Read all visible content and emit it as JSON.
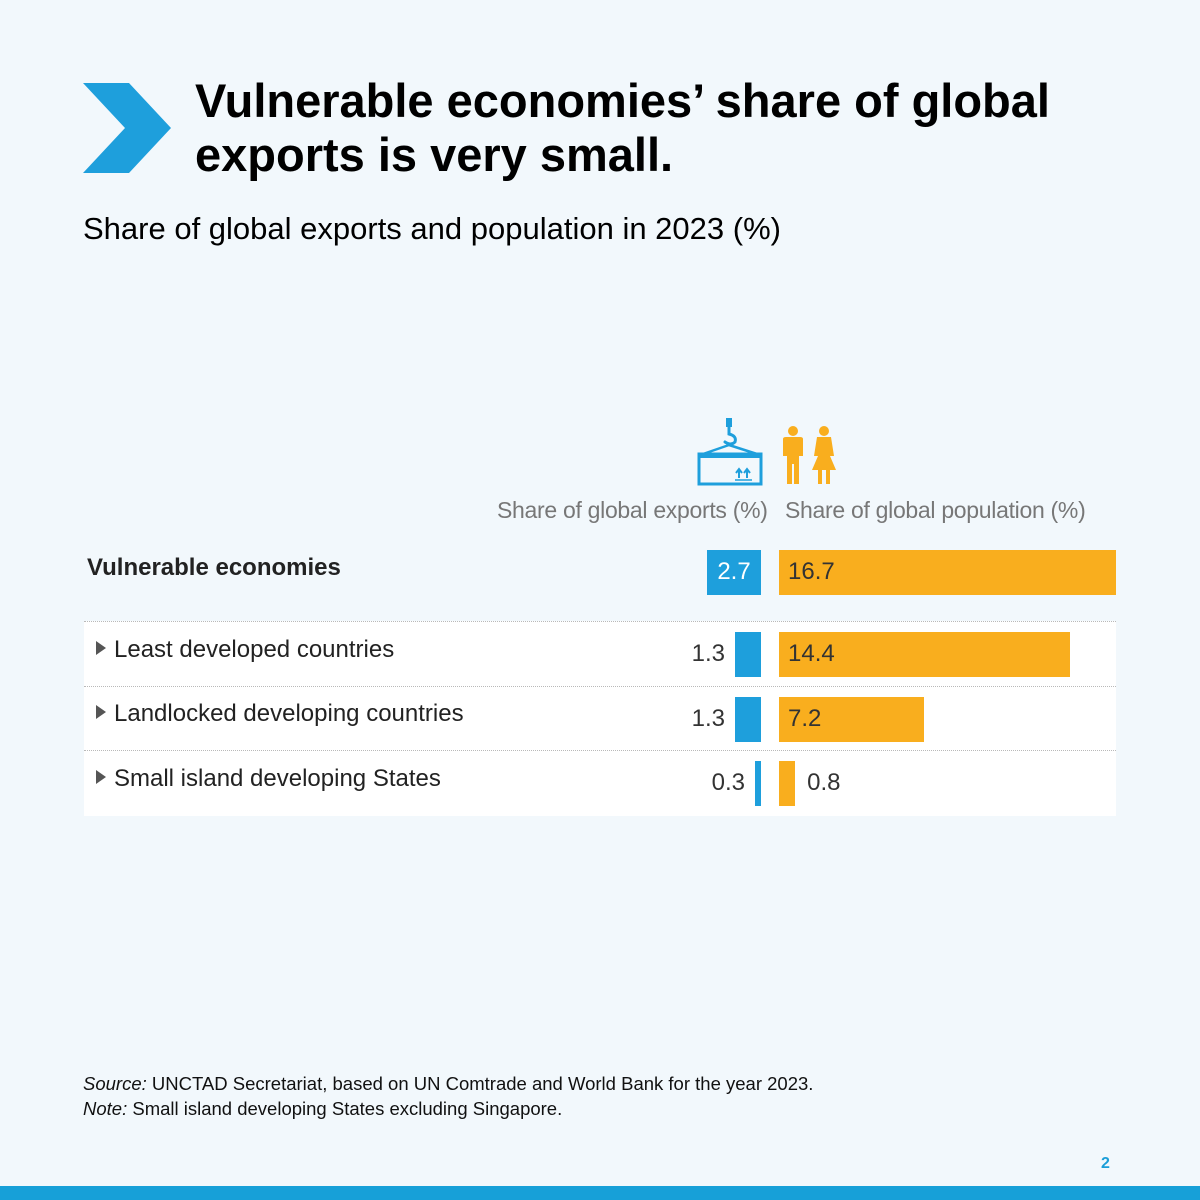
{
  "title": "Vulnerable economies’ share of global exports is very small.",
  "subtitle": "Share of global exports and population in 2023 (%)",
  "colors": {
    "accent": "#1e9fdc",
    "exports": "#1e9fdc",
    "population": "#f9ae1e",
    "background": "#f2f8fc"
  },
  "icons": {
    "exports": "cargo-container-crane-icon",
    "population": "man-woman-icon",
    "bullet": "triangle-right-icon",
    "chevron": "chevron-right-icon"
  },
  "chart_data": {
    "type": "bar",
    "categories": [
      "Vulnerable economies",
      "Least developed countries",
      "Landlocked developing countries",
      "Small island developing States"
    ],
    "series": [
      {
        "name": "Share of global exports (%)",
        "values": [
          2.7,
          1.3,
          1.3,
          0.3
        ]
      },
      {
        "name": "Share of global population (%)",
        "values": [
          16.7,
          14.4,
          7.2,
          0.8
        ]
      }
    ],
    "title": "Vulnerable economies’ share of global exports is very small.",
    "subtitle": "Share of global exports and population in 2023 (%)",
    "xlabel": "",
    "ylabel": "",
    "grid": false
  },
  "footer": {
    "source_label": "Source:",
    "source_text": " UNCTAD Secretariat, based on UN Comtrade and World Bank for the year 2023.",
    "note_label": "Note:",
    "note_text": " Small island developing States excluding Singapore."
  },
  "page_number": "2"
}
